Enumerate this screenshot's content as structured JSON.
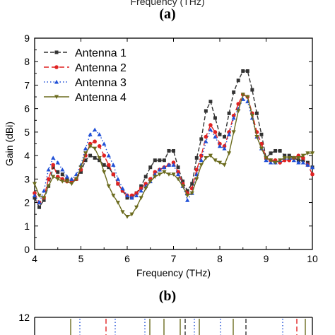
{
  "figure": {
    "top_cut_label": "Frequency (THz)",
    "panel_a": "(a)",
    "panel_b": "(b)"
  },
  "chart_data": [
    {
      "type": "line",
      "xlabel": "Frequency (THz)",
      "ylabel": "Gain (dBi)",
      "xlim": [
        4,
        10
      ],
      "ylim": [
        0,
        9
      ],
      "xticks": [
        4,
        5,
        6,
        7,
        8,
        9,
        10
      ],
      "yticks": [
        0,
        1,
        2,
        3,
        4,
        5,
        6,
        7,
        8,
        9
      ],
      "grid": false,
      "legend": "top-left",
      "x": [
        4.0,
        4.1,
        4.2,
        4.3,
        4.4,
        4.5,
        4.6,
        4.7,
        4.8,
        4.9,
        5.0,
        5.1,
        5.2,
        5.3,
        5.4,
        5.5,
        5.6,
        5.7,
        5.8,
        5.9,
        6.0,
        6.1,
        6.2,
        6.3,
        6.4,
        6.5,
        6.6,
        6.7,
        6.8,
        6.9,
        7.0,
        7.1,
        7.2,
        7.3,
        7.4,
        7.5,
        7.6,
        7.7,
        7.8,
        7.9,
        8.0,
        8.1,
        8.2,
        8.3,
        8.4,
        8.5,
        8.6,
        8.7,
        8.8,
        8.9,
        9.0,
        9.1,
        9.2,
        9.3,
        9.4,
        9.5,
        9.6,
        9.7,
        9.8,
        9.9,
        10.0
      ],
      "series": [
        {
          "name": "Antenna 1",
          "color": "#333333",
          "dash": "6,3",
          "marker": "square",
          "values": [
            2.2,
            1.8,
            2.1,
            2.7,
            3.5,
            3.3,
            3.2,
            3.0,
            2.9,
            3.0,
            3.3,
            3.8,
            4.0,
            3.9,
            3.8,
            3.6,
            3.5,
            3.2,
            2.8,
            2.5,
            2.2,
            2.2,
            2.4,
            2.7,
            3.1,
            3.5,
            3.8,
            3.8,
            3.8,
            4.2,
            4.2,
            3.5,
            2.9,
            2.5,
            2.8,
            3.9,
            4.7,
            5.9,
            6.3,
            5.6,
            4.9,
            4.8,
            5.8,
            6.7,
            7.2,
            7.6,
            7.6,
            6.8,
            5.8,
            4.9,
            3.9,
            4.1,
            4.2,
            4.2,
            4.0,
            4.0,
            3.9,
            3.8,
            3.8,
            3.7,
            3.5
          ]
        },
        {
          "name": "Antenna 2",
          "color": "#e02222",
          "dash": "7,4",
          "marker": "circle",
          "values": [
            2.4,
            2.0,
            2.2,
            3.0,
            3.6,
            3.1,
            3.0,
            2.9,
            2.9,
            3.0,
            3.4,
            4.0,
            4.5,
            4.6,
            4.4,
            4.0,
            3.6,
            3.2,
            2.8,
            2.5,
            2.3,
            2.3,
            2.4,
            2.6,
            2.8,
            3.0,
            3.3,
            3.4,
            3.5,
            3.6,
            3.7,
            3.3,
            2.8,
            2.4,
            2.6,
            3.4,
            4.0,
            4.8,
            5.3,
            5.0,
            4.5,
            4.4,
            5.0,
            5.7,
            6.2,
            6.6,
            6.5,
            5.8,
            5.0,
            4.5,
            3.9,
            3.8,
            3.8,
            3.7,
            3.8,
            3.8,
            3.9,
            4.0,
            3.9,
            3.6,
            3.2
          ]
        },
        {
          "name": "Antenna 3",
          "color": "#1f4fd6",
          "dash": "1.5,3",
          "marker": "triangle-up",
          "values": [
            2.3,
            2.0,
            2.5,
            3.4,
            3.9,
            3.7,
            3.4,
            3.1,
            3.0,
            3.2,
            3.6,
            4.3,
            4.9,
            5.1,
            4.9,
            4.5,
            4.0,
            3.6,
            3.0,
            2.6,
            2.3,
            2.2,
            2.3,
            2.5,
            2.7,
            2.9,
            3.2,
            3.4,
            3.5,
            3.6,
            3.6,
            3.2,
            2.7,
            2.1,
            2.4,
            3.2,
            3.8,
            4.6,
            5.1,
            4.8,
            4.4,
            4.3,
            4.9,
            5.6,
            6.0,
            6.4,
            6.3,
            5.6,
            4.8,
            4.3,
            3.8,
            3.7,
            3.7,
            3.8,
            3.9,
            3.9,
            3.8,
            3.7,
            3.7,
            3.6,
            3.5
          ]
        },
        {
          "name": "Antenna 4",
          "color": "#6b6b1e",
          "dash": "",
          "marker": "triangle-down",
          "values": [
            2.8,
            2.3,
            2.2,
            2.7,
            3.1,
            3.0,
            2.9,
            2.9,
            2.8,
            3.0,
            3.5,
            4.1,
            4.4,
            4.3,
            3.9,
            3.3,
            2.7,
            2.3,
            2.0,
            1.6,
            1.4,
            1.5,
            1.8,
            2.2,
            2.6,
            2.9,
            3.1,
            3.2,
            3.3,
            3.2,
            3.2,
            3.0,
            2.7,
            2.3,
            2.4,
            3.0,
            3.6,
            3.9,
            4.0,
            3.8,
            3.7,
            3.6,
            4.1,
            5.0,
            5.9,
            6.6,
            6.5,
            5.7,
            4.8,
            4.3,
            3.9,
            3.8,
            3.7,
            3.8,
            3.9,
            3.9,
            3.9,
            3.9,
            4.0,
            4.1,
            4.1
          ]
        }
      ]
    },
    {
      "type": "line",
      "ylim": [
        0,
        12
      ],
      "yticks": [
        12
      ],
      "xlim": [
        4,
        10
      ],
      "grid": false,
      "series": []
    }
  ]
}
